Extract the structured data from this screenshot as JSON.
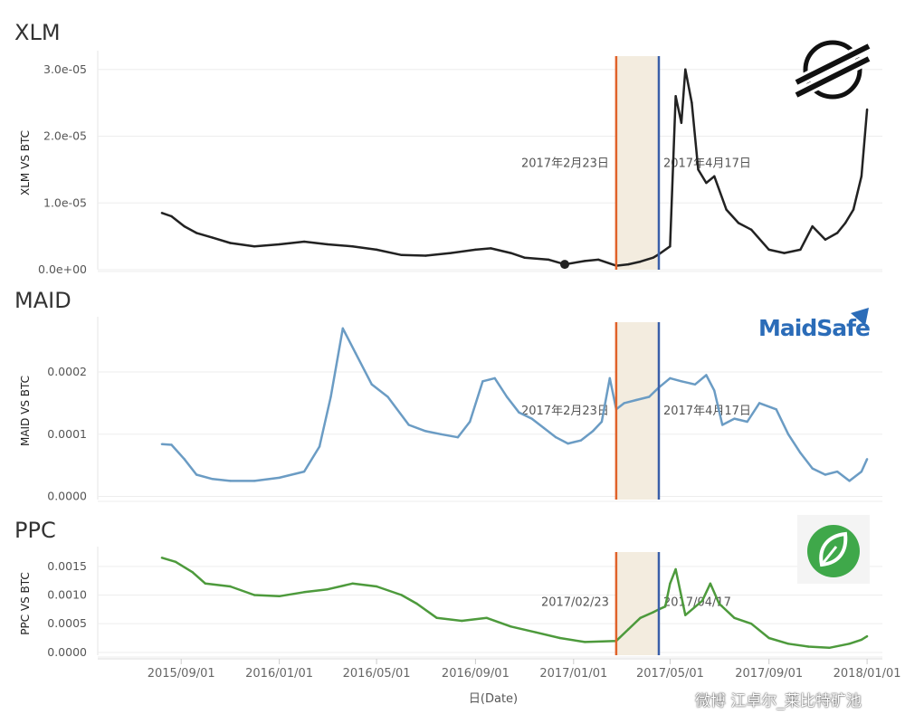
{
  "x_axis": {
    "label": "日(Date)",
    "ticks": [
      {
        "date": "2015-09-01",
        "label": "2015/09/01"
      },
      {
        "date": "2016-01-01",
        "label": "2016/01/01"
      },
      {
        "date": "2016-05-01",
        "label": "2016/05/01"
      },
      {
        "date": "2016-09-01",
        "label": "2016/09/01"
      },
      {
        "date": "2017-01-01",
        "label": "2017/01/01"
      },
      {
        "date": "2017-05-01",
        "label": "2017/05/01"
      },
      {
        "date": "2017-09-01",
        "label": "2017/09/01"
      },
      {
        "date": "2018-01-01",
        "label": "2018/01/01"
      }
    ]
  },
  "highlight": {
    "start_date": "2017-02-23",
    "end_date": "2017-04-17",
    "fill_color": "#f3ecdf",
    "start_line_color": "#e0622a",
    "end_line_color": "#3a5fa8"
  },
  "watermark": "微博 江卓尔_莱比特矿池",
  "logos": {
    "xlm": "stellar-logo-icon",
    "maid": "MaidSafe",
    "ppc": "peercoin-leaf-icon"
  },
  "chart_data": [
    {
      "type": "line",
      "title": "XLM",
      "ylabel": "XLM VS BTC",
      "ylim": [
        0,
        3.2e-05
      ],
      "yticks": [
        0,
        1e-05,
        2e-05,
        3e-05
      ],
      "ytick_labels": [
        "0.0e+00",
        "1.0e-05",
        "2.0e-05",
        "3.0e-05"
      ],
      "color": "#222222",
      "annotations": {
        "start": "2017年2月23日",
        "end": "2017年4月17日"
      },
      "point_marker": {
        "x": "2016-12-21",
        "y": 8e-07
      },
      "x": [
        "2015-08-08",
        "2015-08-20",
        "2015-09-05",
        "2015-09-20",
        "2015-10-10",
        "2015-11-01",
        "2015-12-01",
        "2016-01-01",
        "2016-02-01",
        "2016-03-01",
        "2016-04-01",
        "2016-05-01",
        "2016-06-01",
        "2016-07-01",
        "2016-08-01",
        "2016-09-01",
        "2016-09-20",
        "2016-10-15",
        "2016-11-01",
        "2016-12-01",
        "2016-12-21",
        "2017-01-15",
        "2017-02-01",
        "2017-02-23",
        "2017-03-10",
        "2017-03-25",
        "2017-04-10",
        "2017-04-17",
        "2017-05-01",
        "2017-05-08",
        "2017-05-15",
        "2017-05-20",
        "2017-05-28",
        "2017-06-05",
        "2017-06-15",
        "2017-06-25",
        "2017-07-10",
        "2017-07-25",
        "2017-08-10",
        "2017-09-01",
        "2017-09-20",
        "2017-10-10",
        "2017-10-25",
        "2017-11-10",
        "2017-11-25",
        "2017-12-05",
        "2017-12-15",
        "2017-12-25",
        "2018-01-01"
      ],
      "values": [
        8.5e-06,
        8e-06,
        6.5e-06,
        5.5e-06,
        4.8e-06,
        4e-06,
        3.5e-06,
        3.8e-06,
        4.2e-06,
        3.8e-06,
        3.5e-06,
        3e-06,
        2.2e-06,
        2.1e-06,
        2.5e-06,
        3e-06,
        3.2e-06,
        2.5e-06,
        1.8e-06,
        1.5e-06,
        8e-07,
        1.3e-06,
        1.5e-06,
        6e-07,
        8e-07,
        1.2e-06,
        1.8e-06,
        2.3e-06,
        3.5e-06,
        2.6e-05,
        2.2e-05,
        3e-05,
        2.5e-05,
        1.5e-05,
        1.3e-05,
        1.4e-05,
        9e-06,
        7e-06,
        6e-06,
        3e-06,
        2.5e-06,
        3e-06,
        6.5e-06,
        4.5e-06,
        5.5e-06,
        7e-06,
        9e-06,
        1.4e-05,
        2.4e-05
      ]
    },
    {
      "type": "line",
      "title": "MAID",
      "ylabel": "MAID VS BTC",
      "ylim": [
        -5e-06,
        0.00028
      ],
      "yticks": [
        0,
        0.0001,
        0.0002
      ],
      "ytick_labels": [
        "0.0000",
        "0.0001",
        "0.0002"
      ],
      "color": "#6b9cc4",
      "annotations": {
        "start": "2017年2月23日",
        "end": "2017年4月17日"
      },
      "x": [
        "2015-08-08",
        "2015-08-20",
        "2015-09-05",
        "2015-09-20",
        "2015-10-10",
        "2015-11-01",
        "2015-12-01",
        "2016-01-01",
        "2016-02-01",
        "2016-02-20",
        "2016-03-05",
        "2016-03-20",
        "2016-04-05",
        "2016-04-25",
        "2016-05-15",
        "2016-06-10",
        "2016-07-01",
        "2016-07-20",
        "2016-08-10",
        "2016-08-25",
        "2016-09-10",
        "2016-09-25",
        "2016-10-10",
        "2016-10-25",
        "2016-11-10",
        "2016-11-25",
        "2016-12-10",
        "2016-12-25",
        "2017-01-10",
        "2017-01-25",
        "2017-02-05",
        "2017-02-15",
        "2017-02-23",
        "2017-03-05",
        "2017-03-20",
        "2017-04-05",
        "2017-04-17",
        "2017-05-01",
        "2017-05-15",
        "2017-06-01",
        "2017-06-15",
        "2017-06-25",
        "2017-07-05",
        "2017-07-20",
        "2017-08-05",
        "2017-08-20",
        "2017-09-10",
        "2017-09-25",
        "2017-10-10",
        "2017-10-25",
        "2017-11-10",
        "2017-11-25",
        "2017-12-10",
        "2017-12-25",
        "2018-01-01"
      ],
      "values": [
        8.4e-05,
        8.3e-05,
        6e-05,
        3.5e-05,
        2.8e-05,
        2.5e-05,
        2.5e-05,
        3e-05,
        4e-05,
        8e-05,
        0.00016,
        0.00027,
        0.00023,
        0.00018,
        0.00016,
        0.000115,
        0.000105,
        0.0001,
        9.5e-05,
        0.00012,
        0.000185,
        0.00019,
        0.00016,
        0.000135,
        0.000125,
        0.00011,
        9.5e-05,
        8.5e-05,
        9e-05,
        0.000105,
        0.00012,
        0.00019,
        0.00014,
        0.00015,
        0.000155,
        0.00016,
        0.000175,
        0.00019,
        0.000185,
        0.00018,
        0.000195,
        0.00017,
        0.000115,
        0.000125,
        0.00012,
        0.00015,
        0.00014,
        0.0001,
        7e-05,
        4.5e-05,
        3.5e-05,
        4e-05,
        2.5e-05,
        4e-05,
        6e-05
      ]
    },
    {
      "type": "line",
      "title": "PPC",
      "ylabel": "PPC VS BTC",
      "ylim": [
        -5e-05,
        0.00175
      ],
      "yticks": [
        0,
        0.0005,
        0.001,
        0.0015
      ],
      "ytick_labels": [
        "0.0000",
        "0.0005",
        "0.0010",
        "0.0015"
      ],
      "color": "#4d9a3c",
      "annotations": {
        "start": "2017/02/23",
        "end": "2017/04/17"
      },
      "x": [
        "2015-08-08",
        "2015-08-25",
        "2015-09-15",
        "2015-10-01",
        "2015-11-01",
        "2015-12-01",
        "2016-01-01",
        "2016-02-01",
        "2016-03-01",
        "2016-04-01",
        "2016-05-01",
        "2016-06-01",
        "2016-06-20",
        "2016-07-15",
        "2016-08-15",
        "2016-09-15",
        "2016-10-15",
        "2016-11-15",
        "2016-12-15",
        "2017-01-15",
        "2017-02-23",
        "2017-03-10",
        "2017-03-25",
        "2017-04-10",
        "2017-04-17",
        "2017-04-25",
        "2017-05-01",
        "2017-05-08",
        "2017-05-20",
        "2017-06-10",
        "2017-06-20",
        "2017-07-01",
        "2017-07-20",
        "2017-08-10",
        "2017-09-01",
        "2017-09-25",
        "2017-10-20",
        "2017-11-15",
        "2017-12-10",
        "2017-12-25",
        "2018-01-01"
      ],
      "values": [
        0.00165,
        0.00158,
        0.0014,
        0.0012,
        0.00115,
        0.001,
        0.00098,
        0.00105,
        0.0011,
        0.0012,
        0.00115,
        0.001,
        0.00085,
        0.0006,
        0.00055,
        0.0006,
        0.00045,
        0.00035,
        0.00025,
        0.00018,
        0.0002,
        0.0004,
        0.0006,
        0.0007,
        0.00075,
        0.0008,
        0.0012,
        0.00145,
        0.00065,
        0.0009,
        0.0012,
        0.00085,
        0.0006,
        0.0005,
        0.00025,
        0.00015,
        0.0001,
        8e-05,
        0.00015,
        0.00022,
        0.00028
      ]
    }
  ]
}
